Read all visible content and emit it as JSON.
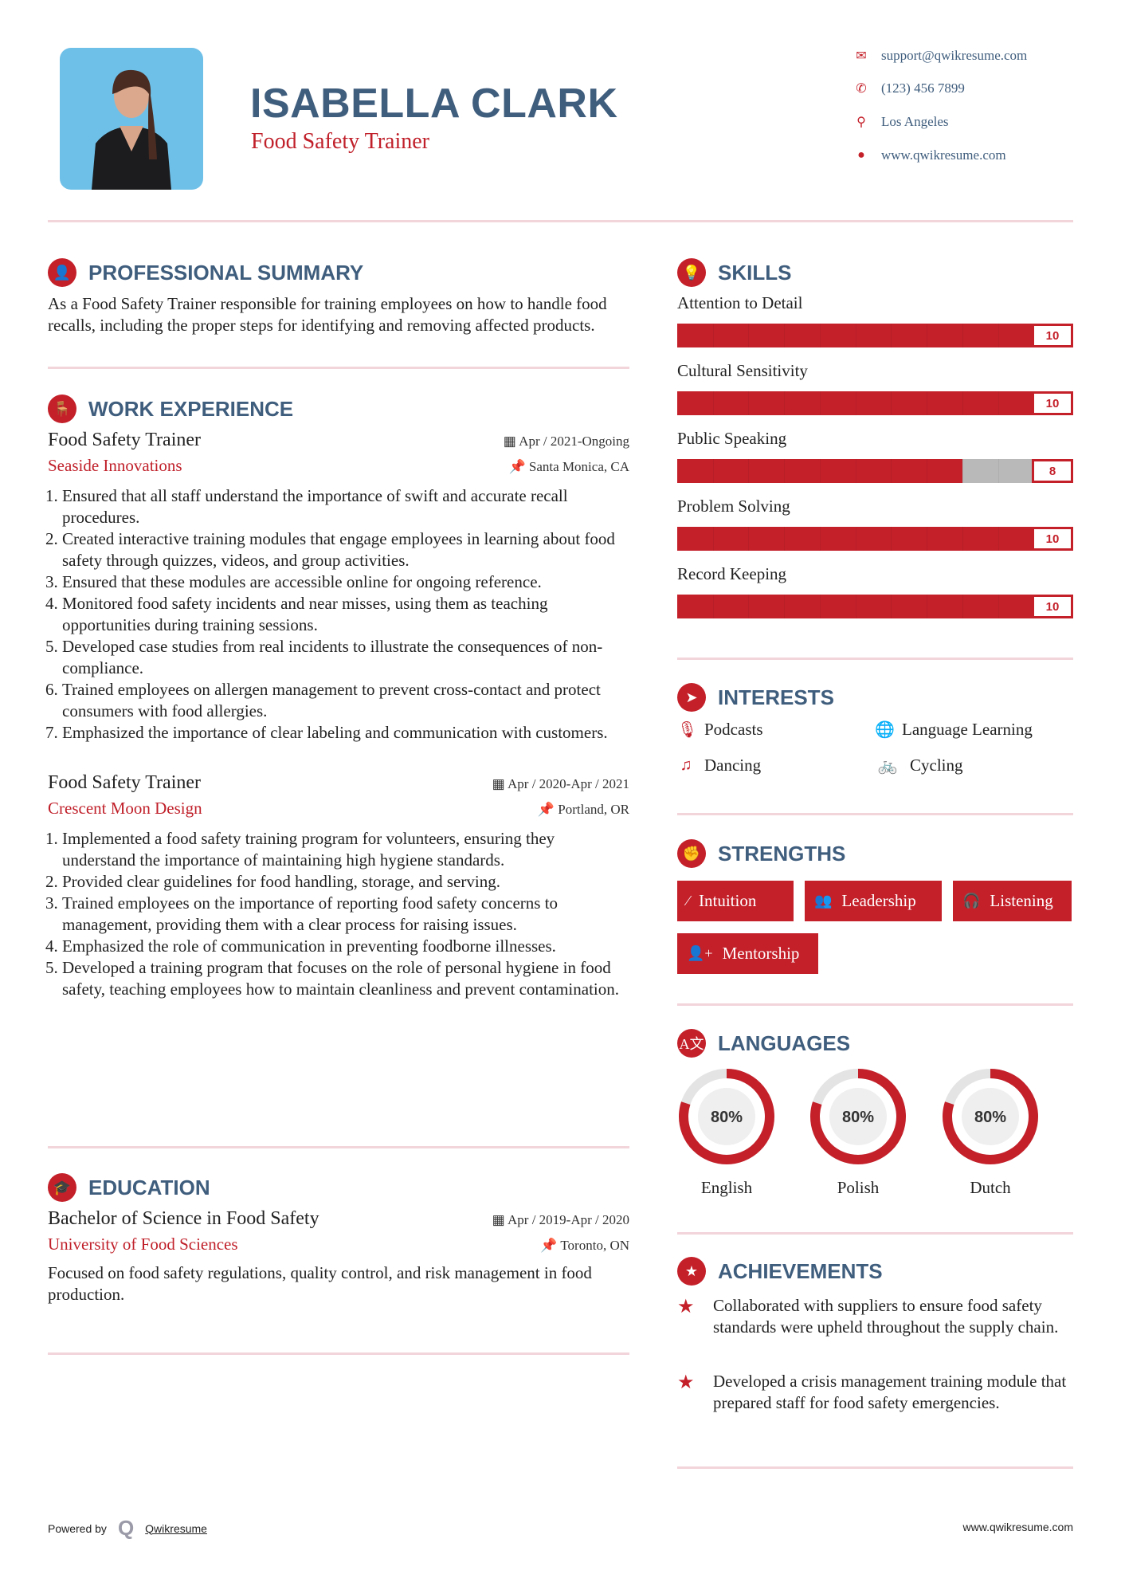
{
  "header": {
    "name": "ISABELLA CLARK",
    "title": "Food Safety Trainer",
    "contacts": [
      {
        "icon": "envelope-icon",
        "text": "support@qwikresume.com"
      },
      {
        "icon": "phone-icon",
        "text": "(123) 456 7899"
      },
      {
        "icon": "map-pin-icon",
        "text": "Los Angeles"
      },
      {
        "icon": "globe-icon",
        "text": "www.qwikresume.com"
      }
    ]
  },
  "colors": {
    "accent": "#c4202a",
    "heading": "#3f5d7d",
    "divider": "#f2d4db",
    "photo_bg": "#6fc0e8"
  },
  "summary": {
    "heading": "PROFESSIONAL SUMMARY",
    "text": "As a Food Safety Trainer responsible for training employees on how to handle food recalls, including the proper steps for identifying and removing affected products."
  },
  "experience": {
    "heading": "WORK EXPERIENCE",
    "jobs": [
      {
        "role": "Food Safety Trainer",
        "dates": "Apr / 2021-Ongoing",
        "company": "Seaside Innovations",
        "location": "Santa Monica, CA",
        "bullets": [
          "Ensured that all staff understand the importance of swift and accurate recall procedures.",
          "Created interactive training modules that engage employees in learning about food safety through quizzes, videos, and group activities.",
          "Ensured that these modules are accessible online for ongoing reference.",
          "Monitored food safety incidents and near misses, using them as teaching opportunities during training sessions.",
          "Developed case studies from real incidents to illustrate the consequences of non-compliance.",
          "Trained employees on allergen management to prevent cross-contact and protect consumers with food allergies.",
          "Emphasized the importance of clear labeling and communication with customers."
        ]
      },
      {
        "role": "Food Safety Trainer",
        "dates": "Apr / 2020-Apr / 2021",
        "company": "Crescent Moon Design",
        "location": "Portland, OR",
        "bullets": [
          "Implemented a food safety training program for volunteers, ensuring they understand the importance of maintaining high hygiene standards.",
          "Provided clear guidelines for food handling, storage, and serving.",
          "Trained employees on the importance of reporting food safety concerns to management, providing them with a clear process for raising issues.",
          "Emphasized the role of communication in preventing foodborne illnesses.",
          "Developed a training program that focuses on the role of personal hygiene in food safety, teaching employees how to maintain cleanliness and prevent contamination."
        ]
      }
    ]
  },
  "education": {
    "heading": "EDUCATION",
    "degree": "Bachelor of Science in Food Safety",
    "dates": "Apr / 2019-Apr / 2020",
    "school": "University of Food Sciences",
    "location": "Toronto, ON",
    "text": "Focused on food safety regulations, quality control, and risk management in food production."
  },
  "skills": {
    "heading": "SKILLS",
    "max": 10,
    "items": [
      {
        "label": "Attention to Detail",
        "value": 10
      },
      {
        "label": "Cultural Sensitivity",
        "value": 10
      },
      {
        "label": "Public Speaking",
        "value": 8
      },
      {
        "label": "Problem Solving",
        "value": 10
      },
      {
        "label": "Record Keeping",
        "value": 10
      }
    ]
  },
  "interests": {
    "heading": "INTERESTS",
    "items": [
      {
        "icon": "microphone-icon",
        "label": "Podcasts"
      },
      {
        "icon": "globe-icon",
        "label": "Language Learning"
      },
      {
        "icon": "music-note-icon",
        "label": "Dancing"
      },
      {
        "icon": "bicycle-icon",
        "label": "Cycling"
      }
    ]
  },
  "strengths": {
    "heading": "STRENGTHS",
    "items": [
      {
        "icon": "magic-wand-icon",
        "label": "Intuition"
      },
      {
        "icon": "users-icon",
        "label": "Leadership"
      },
      {
        "icon": "headphones-icon",
        "label": "Listening"
      },
      {
        "icon": "user-plus-icon",
        "label": "Mentorship"
      }
    ]
  },
  "languages": {
    "heading": "LANGUAGES",
    "items": [
      {
        "label": "English",
        "percent": 80,
        "text": "80%"
      },
      {
        "label": "Polish",
        "percent": 80,
        "text": "80%"
      },
      {
        "label": "Dutch",
        "percent": 80,
        "text": "80%"
      }
    ]
  },
  "achievements": {
    "heading": "ACHIEVEMENTS",
    "items": [
      "Collaborated with suppliers to ensure food safety standards were upheld throughout the supply chain.",
      "Developed a crisis management training module that prepared staff for food safety emergencies."
    ]
  },
  "footer": {
    "powered_by": "Powered by",
    "brand": "Qwikresume",
    "site": "www.qwikresume.com"
  }
}
